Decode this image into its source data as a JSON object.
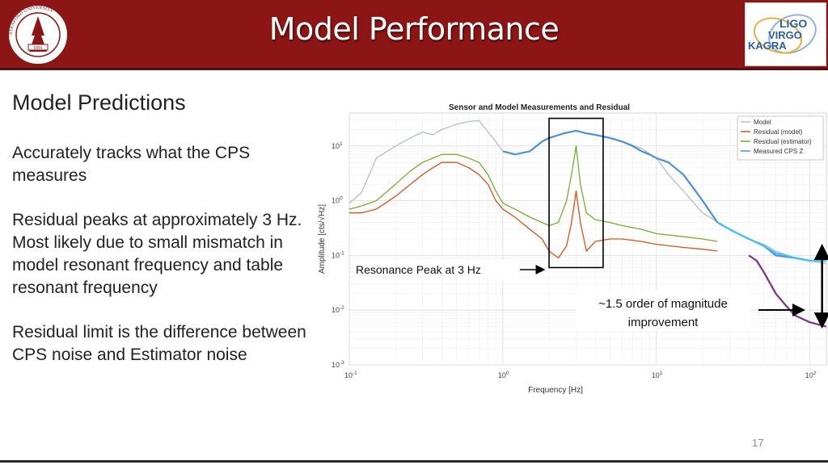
{
  "header": {
    "title": "Model Performance",
    "left_logo": {
      "kind": "university-seal",
      "text_ring": "STANFORD UNIVERSITY",
      "year": "1891"
    },
    "right_logo": {
      "lines": [
        "LIGO",
        "VIRGO",
        "KAGRA"
      ]
    }
  },
  "content": {
    "heading": "Model Predictions",
    "paragraphs": [
      "Accurately tracks what the CPS measures",
      "Residual peaks at approximately 3 Hz. Most likely due to small mismatch in model resonant frequency and table resonant frequency",
      "Residual limit is the difference between CPS noise and Estimator noise"
    ]
  },
  "page_number": "17",
  "chart_data": {
    "type": "line",
    "title": "Sensor and Model Measurements and Residual",
    "xlabel": "Frequency [Hz]",
    "ylabel": "Amplitude [cts/√Hz]",
    "x_scale": "log",
    "y_scale": "log",
    "xlim": [
      0.1,
      128
    ],
    "ylim": [
      0.001,
      40
    ],
    "x_ticks": [
      {
        "value": 0.1,
        "base": "10",
        "exp": "-1"
      },
      {
        "value": 1,
        "base": "10",
        "exp": "0"
      },
      {
        "value": 10,
        "base": "10",
        "exp": "1"
      },
      {
        "value": 100,
        "base": "10",
        "exp": "2"
      }
    ],
    "y_ticks": [
      {
        "value": 0.001,
        "base": "10",
        "exp": "-3"
      },
      {
        "value": 0.01,
        "base": "10",
        "exp": "-2"
      },
      {
        "value": 0.1,
        "base": "10",
        "exp": "-1"
      },
      {
        "value": 1,
        "base": "10",
        "exp": "0"
      },
      {
        "value": 10,
        "base": "10",
        "exp": "1"
      }
    ],
    "grid": true,
    "legend_position": "top-right",
    "series": [
      {
        "name": "Model",
        "color": "#b8bcc4",
        "x": [
          0.1,
          0.12,
          0.15,
          0.2,
          0.25,
          0.3,
          0.35,
          0.4,
          0.5,
          0.6,
          0.7,
          0.8,
          0.9,
          1.0,
          1.2,
          1.5,
          1.8,
          2.0,
          2.5,
          3.0,
          3.5,
          4.0,
          5.0,
          6.0,
          8.0,
          10.0,
          12.0,
          15.0,
          20.0,
          30.0,
          40.0,
          50.0,
          60.0,
          80.0,
          100.0,
          128.0
        ],
        "y": [
          0.9,
          1.4,
          6.0,
          10.0,
          14.0,
          18.0,
          16.0,
          20.0,
          25.0,
          28.0,
          29.0,
          18.0,
          12.0,
          8.0,
          7.0,
          8.0,
          12.0,
          14.0,
          17.0,
          19.0,
          17.0,
          16.0,
          14.0,
          12.0,
          9.0,
          6.0,
          3.0,
          1.5,
          0.6,
          0.3,
          0.2,
          0.16,
          0.12,
          0.09,
          0.08,
          0.07
        ]
      },
      {
        "name": "Residual (model)",
        "color": "#d95319",
        "x": [
          0.1,
          0.12,
          0.15,
          0.2,
          0.25,
          0.3,
          0.35,
          0.4,
          0.5,
          0.6,
          0.7,
          0.8,
          0.9,
          1.0,
          1.2,
          1.5,
          1.8,
          2.0,
          2.3,
          2.6,
          2.8,
          3.0,
          3.2,
          3.5,
          4.0,
          5.0,
          6.0,
          8.0,
          10.0,
          15.0,
          20.0,
          25.0
        ],
        "y": [
          0.6,
          0.6,
          0.7,
          1.2,
          2.0,
          3.0,
          4.0,
          5.0,
          5.0,
          4.0,
          3.0,
          2.0,
          1.0,
          0.7,
          0.5,
          0.3,
          0.2,
          0.12,
          0.09,
          0.15,
          0.4,
          1.5,
          0.4,
          0.12,
          0.18,
          0.2,
          0.2,
          0.18,
          0.16,
          0.14,
          0.13,
          0.12
        ]
      },
      {
        "name": "Residual (estimator)",
        "color": "#77ac30",
        "x": [
          0.1,
          0.12,
          0.15,
          0.2,
          0.25,
          0.3,
          0.35,
          0.4,
          0.5,
          0.6,
          0.7,
          0.8,
          0.9,
          1.0,
          1.2,
          1.5,
          1.8,
          2.0,
          2.3,
          2.6,
          2.8,
          3.0,
          3.2,
          3.5,
          4.0,
          5.0,
          6.0,
          8.0,
          10.0,
          15.0,
          20.0,
          25.0
        ],
        "y": [
          0.7,
          0.8,
          1.0,
          2.0,
          3.5,
          5.0,
          6.0,
          7.0,
          7.0,
          6.0,
          5.0,
          3.0,
          1.5,
          0.9,
          0.7,
          0.5,
          0.4,
          0.35,
          0.4,
          1.0,
          3.0,
          10.0,
          2.0,
          0.6,
          0.45,
          0.4,
          0.35,
          0.3,
          0.25,
          0.22,
          0.2,
          0.18
        ]
      },
      {
        "name": "Measured CPS Z",
        "color": "#4d8fd8",
        "x": [
          1.0,
          1.2,
          1.5,
          1.8,
          2.0,
          2.5,
          3.0,
          3.5,
          4.0,
          5.0,
          6.0,
          7.0,
          8.0,
          9.0,
          10.0,
          12.0,
          15.0,
          18.0,
          20.0,
          25.0,
          30.0,
          40.0,
          50.0,
          60.0,
          80.0,
          100.0,
          128.0
        ],
        "y": [
          8.0,
          7.0,
          8.0,
          12.0,
          14.0,
          17.0,
          19.0,
          17.0,
          16.0,
          14.0,
          12.0,
          10.0,
          8.0,
          7.0,
          6.0,
          5.0,
          3.0,
          1.5,
          1.0,
          0.4,
          0.3,
          0.2,
          0.15,
          0.1,
          0.09,
          0.08,
          0.08
        ]
      },
      {
        "name": "",
        "color": "#41c4f0",
        "x": [
          25.0,
          30.0,
          40.0,
          50.0,
          60.0,
          80.0,
          100.0,
          128.0
        ],
        "y": [
          0.4,
          0.3,
          0.2,
          0.15,
          0.11,
          0.09,
          0.08,
          0.08
        ]
      },
      {
        "name": "",
        "color": "#7e2f8e",
        "x": [
          40.0,
          45.0,
          50.0,
          60.0,
          70.0,
          80.0,
          100.0,
          128.0
        ],
        "y": [
          0.1,
          0.08,
          0.05,
          0.02,
          0.012,
          0.008,
          0.006,
          0.005
        ]
      }
    ],
    "annotations": {
      "resonance_label": "Resonance Peak at 3 Hz",
      "resonance_box_x": [
        2.0,
        4.5
      ],
      "resonance_box_y": [
        0.06,
        32
      ],
      "improvement_label_lines": [
        "~1.5 order of magnitude",
        "improvement"
      ],
      "improvement_arrow_x": 120,
      "improvement_arrow_y": [
        0.005,
        0.15
      ]
    }
  }
}
